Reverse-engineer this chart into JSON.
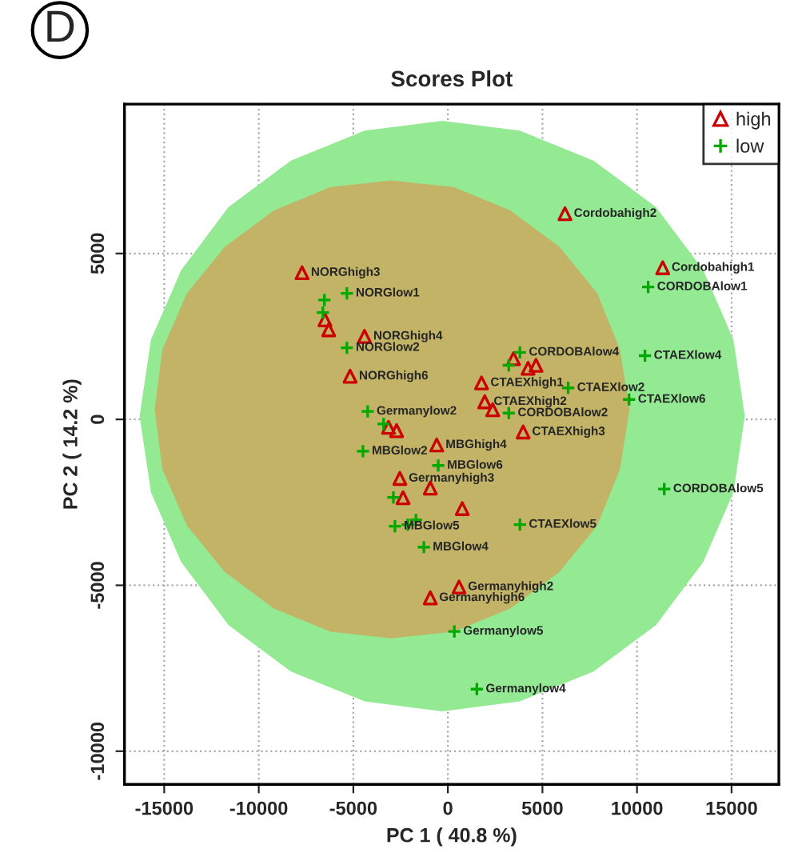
{
  "chart_data": {
    "type": "scatter",
    "title": "Scores Plot",
    "xlabel": "PC 1 ( 40.8 %)",
    "ylabel": "PC 2 ( 14.2 %)",
    "xlim": [
      -17100,
      17500
    ],
    "ylim": [
      -11000,
      9500
    ],
    "xticks": [
      -15000,
      -10000,
      -5000,
      0,
      5000,
      10000,
      15000
    ],
    "yticks": [
      -10000,
      -5000,
      0,
      5000
    ],
    "grid": true,
    "legend": "top right",
    "series": [
      {
        "type": "area",
        "color": "#93ea93",
        "x": [
          15700,
          15100,
          13500,
          11000,
          7700,
          3800,
          -300,
          -4400,
          -8300,
          -11600,
          -14100,
          -15700,
          -16300,
          -15700,
          -14100,
          -11600,
          -8300,
          -4400,
          -300,
          3800,
          7700,
          11000,
          13500,
          15100
        ],
        "values": [
          100,
          2400,
          4500,
          6400,
          7800,
          8700,
          9000,
          8700,
          7800,
          6400,
          4500,
          2400,
          100,
          -2200,
          -4300,
          -6200,
          -7600,
          -8500,
          -8800,
          -8500,
          -7600,
          -6200,
          -4300,
          -2200
        ]
      },
      {
        "type": "area",
        "color": "#c2b367",
        "x": [
          9600,
          9100,
          7900,
          5900,
          3300,
          300,
          -3000,
          -6200,
          -9200,
          -11800,
          -13800,
          -15100,
          -15500,
          -15100,
          -13800,
          -11800,
          -9200,
          -6200,
          -3000,
          300,
          3300,
          5900,
          7900,
          9100
        ],
        "values": [
          300,
          2100,
          3800,
          5200,
          6300,
          7000,
          7200,
          7000,
          6300,
          5200,
          3800,
          2100,
          300,
          -1500,
          -3200,
          -4600,
          -5700,
          -6400,
          -6600,
          -6400,
          -5700,
          -4600,
          -3200,
          -1500
        ]
      },
      {
        "name": "high",
        "color": "#cc0000",
        "marker": "triangle",
        "x": [
          6190,
          11360,
          -7710,
          -5170,
          -4410,
          -6500,
          -6300,
          1780,
          1950,
          2370,
          3980,
          3470,
          4240,
          4660,
          -2540,
          -2370,
          -930,
          760,
          -590,
          -3140,
          -2710,
          590,
          -930
        ],
        "values": [
          6200,
          4570,
          4420,
          1300,
          2500,
          3000,
          2700,
          1100,
          530,
          290,
          -380,
          1830,
          1540,
          1630,
          -1780,
          -2360,
          -2070,
          -2690,
          -770,
          -240,
          -340,
          -5050,
          -5380
        ]
      },
      {
        "name": "low",
        "color": "#00aa00",
        "marker": "cross",
        "x": [
          10590,
          10420,
          9580,
          6360,
          3220,
          3810,
          3220,
          11440,
          3810,
          -5340,
          -6530,
          -6610,
          -5340,
          -4240,
          -4490,
          -510,
          -2800,
          -2120,
          -1690,
          -1270,
          340,
          1530,
          -2880,
          -3400
        ],
        "values": [
          3990,
          1920,
          600,
          950,
          190,
          2020,
          1630,
          -2100,
          -3170,
          3800,
          3600,
          3220,
          2160,
          240,
          -960,
          -1390,
          -3220,
          -3170,
          -3030,
          -3850,
          -6390,
          -8130,
          -2350,
          -140
        ]
      }
    ],
    "annotations": [
      "D",
      {
        "text": "Cordobahigh2",
        "x": 6190,
        "y": 6200
      },
      {
        "text": "Cordobahigh1",
        "x": 11360,
        "y": 4570
      },
      {
        "text": "NORGhigh3",
        "x": -7710,
        "y": 4420
      },
      {
        "text": "NORGhigh6",
        "x": -5170,
        "y": 1300
      },
      {
        "text": "NORGhigh4",
        "x": -4410,
        "y": 2500
      },
      {
        "text": "CTAEXhigh1",
        "x": 1780,
        "y": 1100
      },
      {
        "text": "CTAEXhigh2",
        "x": 1950,
        "y": 530
      },
      {
        "text": "CTAEXhigh3",
        "x": 3980,
        "y": -380
      },
      {
        "text": "Germanyhigh3",
        "x": -2540,
        "y": -1780
      },
      {
        "text": "MBGhigh4",
        "x": -590,
        "y": -770
      },
      {
        "text": "Germanyhigh2",
        "x": 590,
        "y": -5050
      },
      {
        "text": "Germanyhigh6",
        "x": -930,
        "y": -5380
      },
      {
        "text": "CORDOBAlow1",
        "x": 10590,
        "y": 3990
      },
      {
        "text": "CTAEXlow4",
        "x": 10420,
        "y": 1920
      },
      {
        "text": "CTAEXlow6",
        "x": 9580,
        "y": 600
      },
      {
        "text": "CTAEXlow2",
        "x": 6360,
        "y": 950
      },
      {
        "text": "CORDOBAlow2",
        "x": 3220,
        "y": 190
      },
      {
        "text": "CORDOBAlow4",
        "x": 3810,
        "y": 2020
      },
      {
        "text": "CORDOBAlow5",
        "x": 11440,
        "y": -2100
      },
      {
        "text": "CTAEXlow5",
        "x": 3810,
        "y": -3170
      },
      {
        "text": "NORGlow1",
        "x": -5340,
        "y": 3800
      },
      {
        "text": "NORGlow2",
        "x": -5340,
        "y": 2160
      },
      {
        "text": "Germanylow2",
        "x": -4240,
        "y": 240
      },
      {
        "text": "MBGlow2",
        "x": -4490,
        "y": -960
      },
      {
        "text": "MBGlow6",
        "x": -510,
        "y": -1390
      },
      {
        "text": "MBGlow5",
        "x": -2800,
        "y": -3220
      },
      {
        "text": "MBGlow4",
        "x": -1270,
        "y": -3850
      },
      {
        "text": "Germanylow5",
        "x": 340,
        "y": -6390
      },
      {
        "text": "Germanylow4",
        "x": 1530,
        "y": -8130
      }
    ]
  }
}
